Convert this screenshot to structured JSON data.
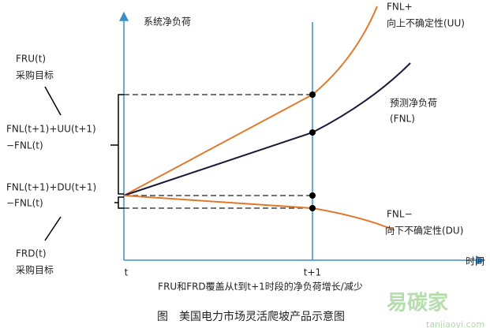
{
  "axes": {
    "y_label": "系统净负荷",
    "x_label": "时间",
    "t_label": "t",
    "t1_label": "t+1"
  },
  "curves": {
    "upper": [
      "FNL+",
      "向上不确定性(UU)"
    ],
    "forecast": [
      "预测净负荷",
      "(FNL)"
    ],
    "lower": [
      "FNL−",
      "向下不确定性(DU)"
    ]
  },
  "left_labels": {
    "fru": [
      "FRU(t)",
      "采购目标"
    ],
    "up_formula": [
      "FNL(t+1)+UU(t+1)",
      "−FNL(t)"
    ],
    "down_formula": [
      "FNL(t+1)+DU(t+1)",
      "−FNL(t)"
    ],
    "frd": [
      "FRD(t)",
      "采购目标"
    ]
  },
  "caption": "FRU和FRD覆盖从t到t+1时段的净负荷增长/减少",
  "figure_title": "图　美国电力市场灵活爬坡产品示意图",
  "watermark": [
    "易碳家",
    "tanjiaoyi.com"
  ]
}
